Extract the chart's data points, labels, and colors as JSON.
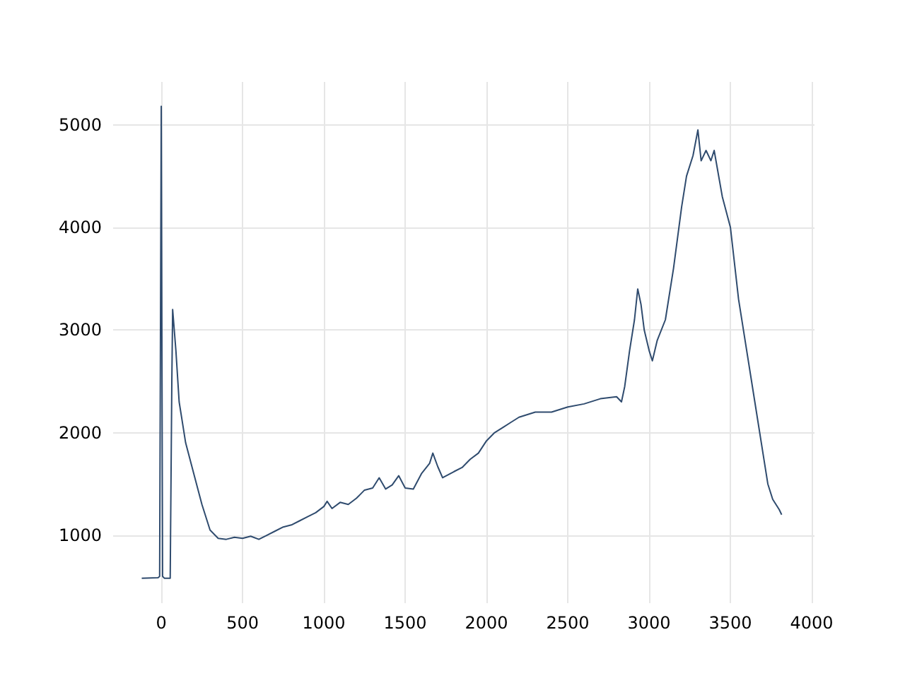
{
  "chart_data": {
    "type": "line",
    "color": "#2f4b6e",
    "xlim": [
      -296,
      4017
    ],
    "ylim": [
      338,
      5418
    ],
    "xticks": [
      0,
      500,
      1000,
      1500,
      2000,
      2500,
      3000,
      3500,
      4000
    ],
    "yticks": [
      1000,
      2000,
      3000,
      4000,
      5000
    ],
    "grid": true,
    "marker": "none",
    "line_style": "solid",
    "x": [
      -120,
      -20,
      -10,
      0,
      8,
      20,
      55,
      65,
      70,
      90,
      110,
      150,
      200,
      250,
      300,
      350,
      400,
      450,
      500,
      550,
      600,
      650,
      700,
      750,
      800,
      850,
      900,
      950,
      1000,
      1020,
      1050,
      1100,
      1150,
      1200,
      1250,
      1300,
      1340,
      1380,
      1420,
      1460,
      1500,
      1550,
      1600,
      1650,
      1670,
      1700,
      1730,
      1800,
      1850,
      1900,
      1950,
      2000,
      2050,
      2100,
      2150,
      2200,
      2300,
      2400,
      2500,
      2600,
      2700,
      2800,
      2830,
      2850,
      2880,
      2910,
      2930,
      2950,
      2970,
      3000,
      3020,
      3050,
      3100,
      3150,
      3200,
      3230,
      3270,
      3300,
      3320,
      3350,
      3380,
      3400,
      3450,
      3500,
      3550,
      3600,
      3650,
      3700,
      3730,
      3760,
      3800,
      3815
    ],
    "values": [
      580,
      585,
      600,
      5180,
      600,
      580,
      580,
      2500,
      3200,
      2800,
      2300,
      1900,
      1600,
      1300,
      1050,
      970,
      960,
      980,
      970,
      990,
      960,
      1000,
      1040,
      1080,
      1100,
      1140,
      1180,
      1220,
      1280,
      1330,
      1260,
      1320,
      1300,
      1360,
      1440,
      1460,
      1560,
      1450,
      1490,
      1580,
      1460,
      1450,
      1600,
      1700,
      1800,
      1670,
      1560,
      1620,
      1660,
      1740,
      1800,
      1920,
      2000,
      2050,
      2100,
      2150,
      2200,
      2200,
      2250,
      2280,
      2330,
      2350,
      2300,
      2450,
      2800,
      3100,
      3400,
      3250,
      3000,
      2800,
      2700,
      2900,
      3100,
      3600,
      4200,
      4500,
      4700,
      4950,
      4650,
      4750,
      4650,
      4750,
      4300,
      4000,
      3300,
      2800,
      2300,
      1800,
      1500,
      1350,
      1250,
      1200
    ]
  }
}
